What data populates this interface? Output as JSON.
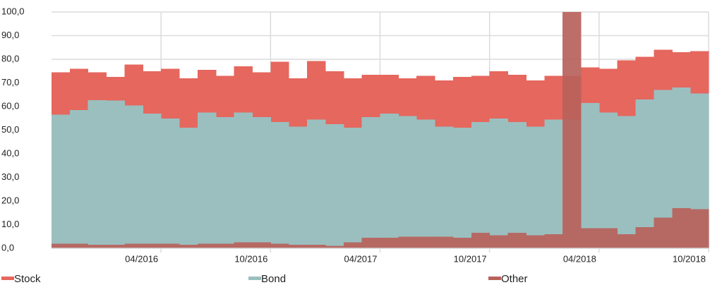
{
  "chart_data": {
    "type": "step-area",
    "categories": [
      null,
      null,
      null,
      null,
      null,
      "04/2016",
      null,
      null,
      null,
      null,
      null,
      "10/2016",
      null,
      null,
      null,
      null,
      null,
      "04/2017",
      null,
      null,
      null,
      null,
      null,
      "10/2017",
      null,
      null,
      null,
      null,
      null,
      "04/2018",
      null,
      null,
      null,
      null,
      null,
      "10/2018"
    ],
    "series": [
      {
        "name": "Stock",
        "color": "#e5675e",
        "values": [
          74.5,
          76,
          74.5,
          72.5,
          77.7,
          75,
          76,
          72,
          75.5,
          73,
          77,
          74.5,
          79,
          72,
          79.2,
          75,
          72,
          73.5,
          73.5,
          72,
          73,
          71,
          72.5,
          73,
          75,
          73.5,
          71,
          73,
          73,
          76.5,
          76,
          79.5,
          81,
          84,
          83,
          83.5
        ]
      },
      {
        "name": "Bond",
        "color": "#9bbfbf",
        "values": [
          56.5,
          58.5,
          62.7,
          62.5,
          60.5,
          57,
          55,
          51,
          57.5,
          55.5,
          57.5,
          55.5,
          53.5,
          51.5,
          54.5,
          52.5,
          51,
          55.5,
          57,
          56,
          54.5,
          51.5,
          51,
          53.5,
          55,
          53.5,
          51.5,
          54.5,
          54.5,
          61.5,
          57.5,
          56,
          63,
          67,
          68,
          65.5
        ]
      },
      {
        "name": "Other",
        "color": "#b8625b",
        "values": [
          2,
          2,
          1.5,
          1.5,
          2,
          2,
          2,
          1.5,
          2,
          2,
          2.5,
          2.5,
          2,
          1.5,
          1.5,
          1,
          2.5,
          4.5,
          4.5,
          5,
          5,
          5,
          4.5,
          6.5,
          5.5,
          6.5,
          5.5,
          6,
          100,
          8.5,
          8.5,
          6,
          9,
          13,
          17,
          16.5
        ]
      }
    ],
    "ylim": [
      0,
      100
    ],
    "yticks": [
      {
        "value": 0,
        "label": "0,0"
      },
      {
        "value": 10,
        "label": "10,0"
      },
      {
        "value": 20,
        "label": "20,0"
      },
      {
        "value": 30,
        "label": "30,0"
      },
      {
        "value": 40,
        "label": "40,0"
      },
      {
        "value": 50,
        "label": "50,0"
      },
      {
        "value": 60,
        "label": "60,0"
      },
      {
        "value": 70,
        "label": "70,0"
      },
      {
        "value": 80,
        "label": "80,0"
      },
      {
        "value": 90,
        "label": "90,0"
      },
      {
        "value": 100,
        "label": "100,0"
      }
    ],
    "grid": true,
    "legend": "bottom"
  }
}
